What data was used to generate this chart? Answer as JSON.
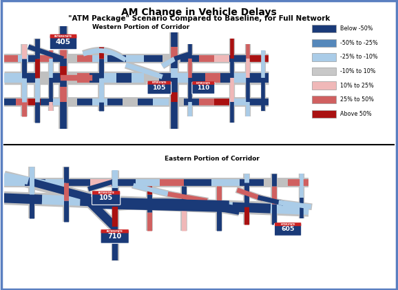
{
  "title": "AM Change in Vehicle Delays",
  "subtitle": "\"ATM Package\" Scenario Compared to Baseline, for Full Network",
  "title_fontsize": 10,
  "subtitle_fontsize": 7.5,
  "bg_color": "#ffffff",
  "border_color": "#5a7fc0",
  "legend_labels": [
    "Below -50%",
    "-50% to -25%",
    "-25% to -10%",
    "-10% to 10%",
    "10% to 25%",
    "25% to 50%",
    "Above 50%"
  ],
  "legend_colors": [
    "#1a3a78",
    "#5588bb",
    "#aacce8",
    "#c8c8c8",
    "#f0b8b8",
    "#d06060",
    "#aa1111"
  ],
  "top_label": "Western Portion of Corridor",
  "bottom_label": "Eastern Portion of Corridor",
  "colors": {
    "dark_blue": "#1a3a78",
    "med_blue": "#5588bb",
    "light_blue": "#aacce8",
    "gray": "#c0c0c0",
    "light_red": "#f0b8b8",
    "med_red": "#d06060",
    "dark_red": "#aa1111",
    "white": "#ffffff"
  }
}
